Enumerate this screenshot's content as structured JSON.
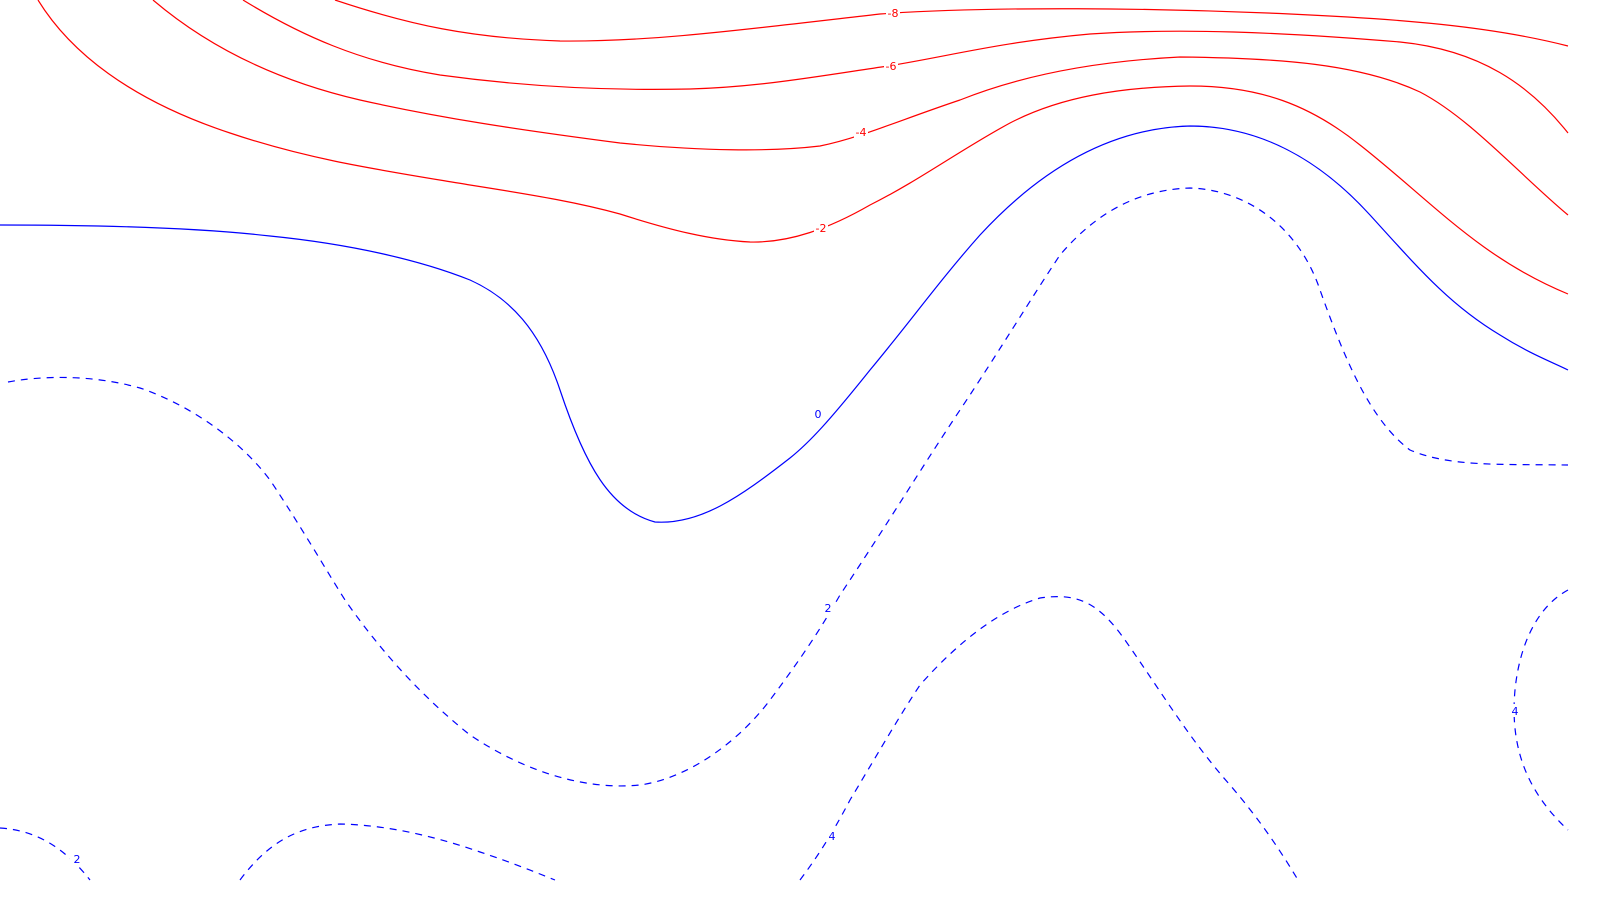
{
  "chart_data": {
    "type": "contour",
    "title": "",
    "xlabel": "",
    "ylabel": "",
    "grid": false,
    "legend": "none",
    "colors": {
      "negative": "#ff0000",
      "positive": "#0000ff",
      "background": "#ffffff"
    },
    "line_styles": {
      "negative": "solid",
      "positive": "dashed"
    },
    "levels": [
      -8,
      -6,
      -4,
      -2,
      0,
      2,
      4
    ],
    "contours": [
      {
        "level": -8,
        "label": "-8"
      },
      {
        "level": -6,
        "label": "-6"
      },
      {
        "level": -4,
        "label": "-4"
      },
      {
        "level": -2,
        "label": "-2"
      },
      {
        "level": 0,
        "label": "0"
      },
      {
        "level": 2,
        "label": "2"
      },
      {
        "level": 2,
        "label": "2"
      },
      {
        "level": 4,
        "label": "4"
      },
      {
        "level": 4,
        "label": "4"
      }
    ]
  }
}
